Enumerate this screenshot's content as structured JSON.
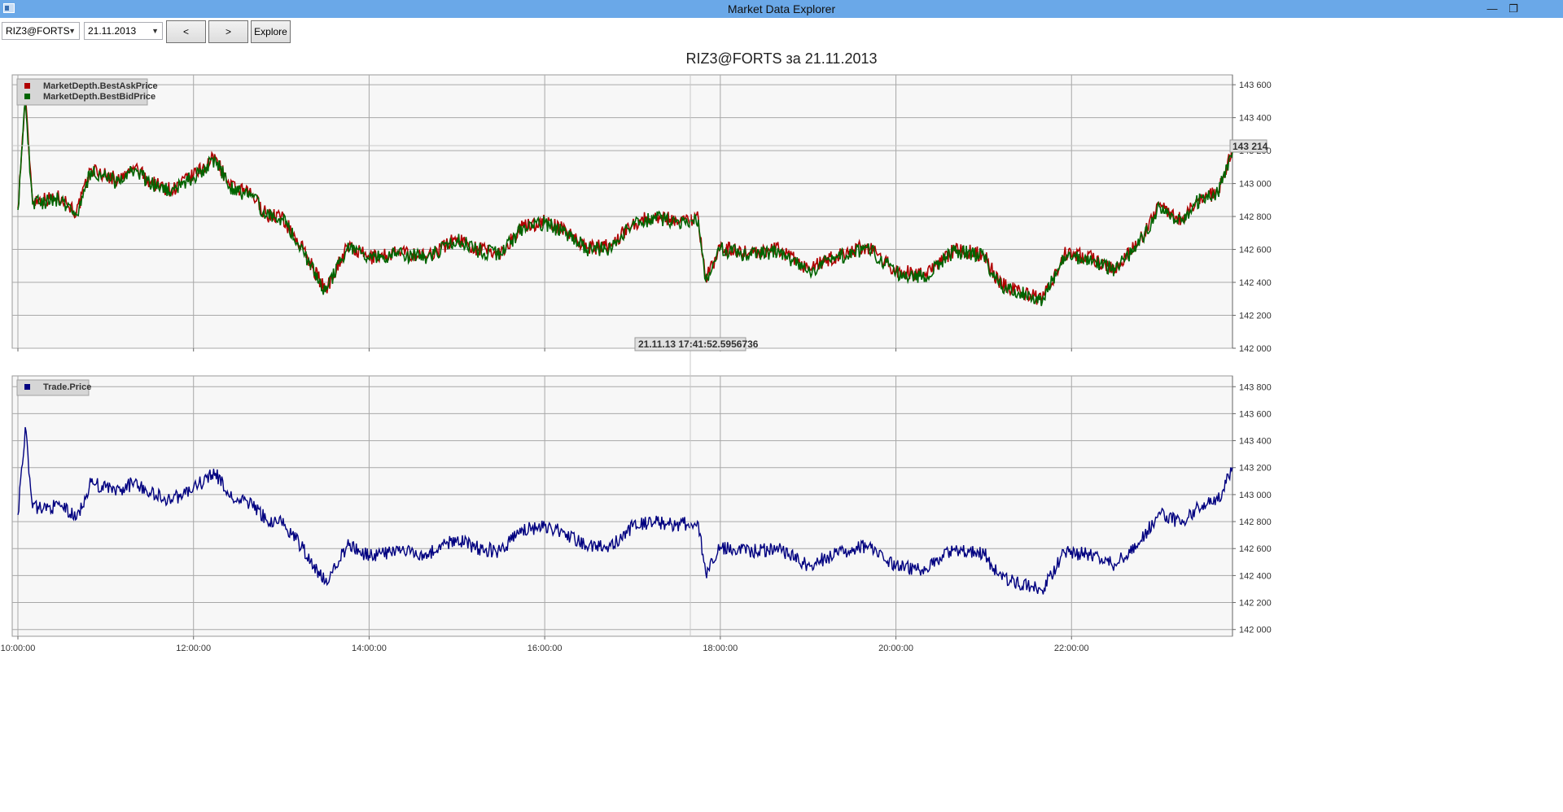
{
  "window": {
    "title": "Market Data Explorer"
  },
  "toolbar": {
    "security": {
      "selected": "RIZ3@FORTS"
    },
    "date": {
      "selected": "21.11.2013"
    },
    "prev_label": "<",
    "next_label": ">",
    "explore_label": "Explore"
  },
  "page_title": "RIZ3@FORTS за 21.11.2013",
  "colors": {
    "ask": "#b00000",
    "bid": "#006400",
    "trade": "#000080",
    "titlebar": "#6aa8e8"
  },
  "cursor": {
    "price_label": "143 214",
    "time_label": "21.11.13 17:41:52.5956736"
  },
  "chart_data": [
    {
      "type": "line",
      "title": "",
      "xlabel": "",
      "ylabel": "",
      "x_ticks": [
        "10:00:00",
        "12:00:00",
        "14:00:00",
        "16:00:00",
        "18:00:00",
        "20:00:00",
        "22:00:00"
      ],
      "x_range": [
        "10:00",
        "23:50"
      ],
      "y_ticks": [
        "143 600",
        "143 400",
        "143 200",
        "143 000",
        "142 800",
        "142 600",
        "142 400",
        "142 200",
        "142 000"
      ],
      "ylim": [
        142000,
        143660
      ],
      "grid": true,
      "legend": "top-left",
      "series": [
        {
          "name": "MarketDepth.BestAskPrice",
          "points": [
            [
              "10:00",
              142850
            ],
            [
              "10:05",
              143520
            ],
            [
              "10:10",
              142900
            ],
            [
              "10:25",
              142910
            ],
            [
              "10:30",
              142920
            ],
            [
              "10:40",
              142820
            ],
            [
              "10:50",
              143090
            ],
            [
              "11:00",
              143050
            ],
            [
              "11:10",
              143020
            ],
            [
              "11:20",
              143100
            ],
            [
              "11:30",
              143010
            ],
            [
              "11:45",
              142960
            ],
            [
              "12:00",
              143050
            ],
            [
              "12:15",
              143160
            ],
            [
              "12:25",
              142980
            ],
            [
              "12:40",
              142930
            ],
            [
              "12:50",
              142810
            ],
            [
              "13:00",
              142800
            ],
            [
              "13:15",
              142600
            ],
            [
              "13:30",
              142350
            ],
            [
              "13:45",
              142620
            ],
            [
              "14:00",
              142550
            ],
            [
              "14:20",
              142580
            ],
            [
              "14:40",
              142560
            ],
            [
              "15:00",
              142670
            ],
            [
              "15:15",
              142600
            ],
            [
              "15:30",
              142580
            ],
            [
              "15:45",
              142740
            ],
            [
              "16:00",
              142770
            ],
            [
              "16:15",
              142710
            ],
            [
              "16:30",
              142610
            ],
            [
              "16:45",
              142620
            ],
            [
              "17:00",
              142760
            ],
            [
              "17:15",
              142800
            ],
            [
              "17:30",
              142780
            ],
            [
              "17:45",
              142790
            ],
            [
              "17:50",
              142420
            ],
            [
              "18:00",
              142610
            ],
            [
              "18:20",
              142580
            ],
            [
              "18:40",
              142600
            ],
            [
              "19:00",
              142480
            ],
            [
              "19:20",
              142560
            ],
            [
              "19:40",
              142620
            ],
            [
              "20:00",
              142470
            ],
            [
              "20:20",
              142440
            ],
            [
              "20:40",
              142600
            ],
            [
              "21:00",
              142570
            ],
            [
              "21:10",
              142400
            ],
            [
              "21:40",
              142290
            ],
            [
              "21:55",
              142570
            ],
            [
              "22:10",
              142560
            ],
            [
              "22:30",
              142480
            ],
            [
              "22:50",
              142700
            ],
            [
              "23:00",
              142870
            ],
            [
              "23:15",
              142780
            ],
            [
              "23:25",
              142900
            ],
            [
              "23:40",
              142950
            ],
            [
              "23:50",
              143200
            ]
          ]
        },
        {
          "name": "MarketDepth.BestBidPrice",
          "points": [
            [
              "10:00",
              142840
            ],
            [
              "10:05",
              143500
            ],
            [
              "10:10",
              142880
            ],
            [
              "10:25",
              142900
            ],
            [
              "10:30",
              142900
            ],
            [
              "10:40",
              142810
            ],
            [
              "10:50",
              143080
            ],
            [
              "11:00",
              143040
            ],
            [
              "11:10",
              143000
            ],
            [
              "11:20",
              143090
            ],
            [
              "11:30",
              143000
            ],
            [
              "11:45",
              142950
            ],
            [
              "12:00",
              143040
            ],
            [
              "12:15",
              143150
            ],
            [
              "12:25",
              142970
            ],
            [
              "12:40",
              142920
            ],
            [
              "12:50",
              142800
            ],
            [
              "13:00",
              142790
            ],
            [
              "13:15",
              142590
            ],
            [
              "13:30",
              142340
            ],
            [
              "13:45",
              142610
            ],
            [
              "14:00",
              142540
            ],
            [
              "14:20",
              142570
            ],
            [
              "14:40",
              142550
            ],
            [
              "15:00",
              142660
            ],
            [
              "15:15",
              142590
            ],
            [
              "15:30",
              142570
            ],
            [
              "15:45",
              142730
            ],
            [
              "16:00",
              142760
            ],
            [
              "16:15",
              142700
            ],
            [
              "16:30",
              142600
            ],
            [
              "16:45",
              142610
            ],
            [
              "17:00",
              142750
            ],
            [
              "17:15",
              142790
            ],
            [
              "17:30",
              142770
            ],
            [
              "17:45",
              142780
            ],
            [
              "17:50",
              142410
            ],
            [
              "18:00",
              142600
            ],
            [
              "18:20",
              142570
            ],
            [
              "18:40",
              142590
            ],
            [
              "19:00",
              142470
            ],
            [
              "19:20",
              142550
            ],
            [
              "19:40",
              142610
            ],
            [
              "20:00",
              142460
            ],
            [
              "20:20",
              142430
            ],
            [
              "20:40",
              142590
            ],
            [
              "21:00",
              142560
            ],
            [
              "21:10",
              142390
            ],
            [
              "21:40",
              142280
            ],
            [
              "21:55",
              142560
            ],
            [
              "22:10",
              142550
            ],
            [
              "22:30",
              142470
            ],
            [
              "22:50",
              142690
            ],
            [
              "23:00",
              142860
            ],
            [
              "23:15",
              142770
            ],
            [
              "23:25",
              142890
            ],
            [
              "23:40",
              142940
            ],
            [
              "23:50",
              143190
            ]
          ]
        }
      ]
    },
    {
      "type": "line",
      "title": "",
      "xlabel": "",
      "ylabel": "",
      "x_ticks": [
        "10:00:00",
        "12:00:00",
        "14:00:00",
        "16:00:00",
        "18:00:00",
        "20:00:00",
        "22:00:00"
      ],
      "x_range": [
        "10:00",
        "23:50"
      ],
      "y_ticks": [
        "143 800",
        "143 600",
        "143 400",
        "143 200",
        "143 000",
        "142 800",
        "142 600",
        "142 400",
        "142 200",
        "142 000"
      ],
      "ylim": [
        141950,
        143880
      ],
      "grid": true,
      "legend": "top-left",
      "series": [
        {
          "name": "Trade.Price",
          "points": [
            [
              "10:00",
              142850
            ],
            [
              "10:05",
              143500
            ],
            [
              "10:10",
              142900
            ],
            [
              "10:25",
              142910
            ],
            [
              "10:30",
              142920
            ],
            [
              "10:40",
              142820
            ],
            [
              "10:50",
              143090
            ],
            [
              "11:00",
              143050
            ],
            [
              "11:10",
              143020
            ],
            [
              "11:20",
              143100
            ],
            [
              "11:30",
              143010
            ],
            [
              "11:45",
              142960
            ],
            [
              "12:00",
              143050
            ],
            [
              "12:15",
              143160
            ],
            [
              "12:25",
              142980
            ],
            [
              "12:40",
              142930
            ],
            [
              "12:50",
              142810
            ],
            [
              "13:00",
              142800
            ],
            [
              "13:15",
              142600
            ],
            [
              "13:30",
              142350
            ],
            [
              "13:45",
              142620
            ],
            [
              "14:00",
              142550
            ],
            [
              "14:20",
              142580
            ],
            [
              "14:40",
              142560
            ],
            [
              "15:00",
              142670
            ],
            [
              "15:15",
              142600
            ],
            [
              "15:30",
              142580
            ],
            [
              "15:45",
              142740
            ],
            [
              "16:00",
              142770
            ],
            [
              "16:15",
              142710
            ],
            [
              "16:30",
              142610
            ],
            [
              "16:45",
              142620
            ],
            [
              "17:00",
              142760
            ],
            [
              "17:15",
              142800
            ],
            [
              "17:30",
              142780
            ],
            [
              "17:45",
              142790
            ],
            [
              "17:50",
              142420
            ],
            [
              "18:00",
              142610
            ],
            [
              "18:20",
              142580
            ],
            [
              "18:40",
              142600
            ],
            [
              "19:00",
              142480
            ],
            [
              "19:20",
              142560
            ],
            [
              "19:40",
              142620
            ],
            [
              "20:00",
              142470
            ],
            [
              "20:20",
              142440
            ],
            [
              "20:40",
              142600
            ],
            [
              "21:00",
              142570
            ],
            [
              "21:10",
              142400
            ],
            [
              "21:40",
              142290
            ],
            [
              "21:55",
              142570
            ],
            [
              "22:10",
              142560
            ],
            [
              "22:30",
              142480
            ],
            [
              "22:50",
              142700
            ],
            [
              "23:00",
              142870
            ],
            [
              "23:15",
              142780
            ],
            [
              "23:25",
              142900
            ],
            [
              "23:40",
              142950
            ],
            [
              "23:50",
              143200
            ]
          ]
        }
      ]
    }
  ]
}
